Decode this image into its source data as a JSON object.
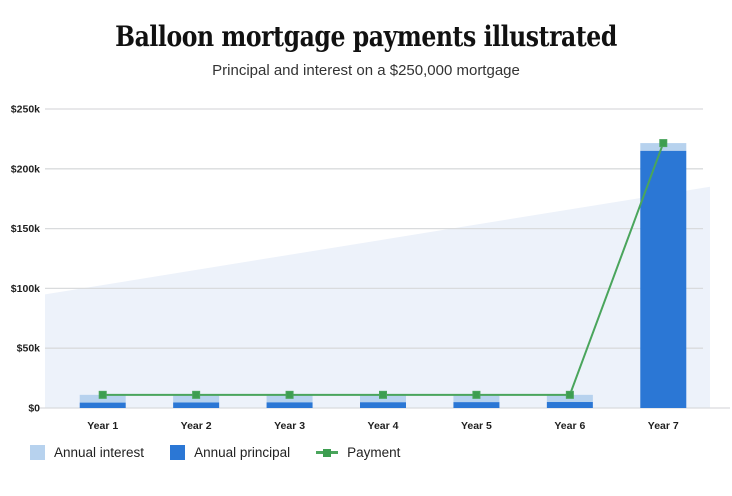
{
  "header": {
    "title": "Balloon mortgage payments illustrated",
    "subtitle": "Principal and interest on a $250,000 mortgage"
  },
  "chart_data": {
    "type": "bar",
    "subtype": "stacked-bars-with-line-overlay",
    "title": "Balloon mortgage payments illustrated",
    "subtitle": "Principal and interest on a $250,000 mortgage",
    "categories": [
      "Year 1",
      "Year 2",
      "Year 3",
      "Year 4",
      "Year 5",
      "Year 6",
      "Year 7"
    ],
    "value_unit": "USD thousands",
    "series": [
      {
        "name": "Annual interest",
        "type": "bar",
        "stack_position": "top",
        "color": "#b7d2ee",
        "values": [
          6.5,
          6.4,
          6.3,
          6.2,
          6.1,
          6.0,
          6.5
        ]
      },
      {
        "name": "Annual principal",
        "type": "bar",
        "stack_position": "bottom",
        "color": "#2b77d5",
        "values": [
          4.5,
          4.6,
          4.7,
          4.8,
          4.9,
          5.0,
          215
        ]
      },
      {
        "name": "Payment",
        "type": "line",
        "color": "#4aa55c",
        "marker": "square",
        "marker_color": "#3d9e50",
        "values": [
          11,
          11,
          11,
          11,
          11,
          11,
          221.5
        ]
      }
    ],
    "ylim": [
      0,
      250
    ],
    "yticks": [
      {
        "value": 0,
        "label": "$0"
      },
      {
        "value": 50,
        "label": "$50k"
      },
      {
        "value": 100,
        "label": "$100k"
      },
      {
        "value": 150,
        "label": "$150k"
      },
      {
        "value": 200,
        "label": "$200k"
      },
      {
        "value": 250,
        "label": "$250k"
      }
    ],
    "grid": "horizontal",
    "gridline_color": "#d9dbdd",
    "background_wedge": {
      "start_value": 95,
      "end_value": 185,
      "color": "#edf2fa"
    },
    "legend_position": "bottom-left"
  }
}
